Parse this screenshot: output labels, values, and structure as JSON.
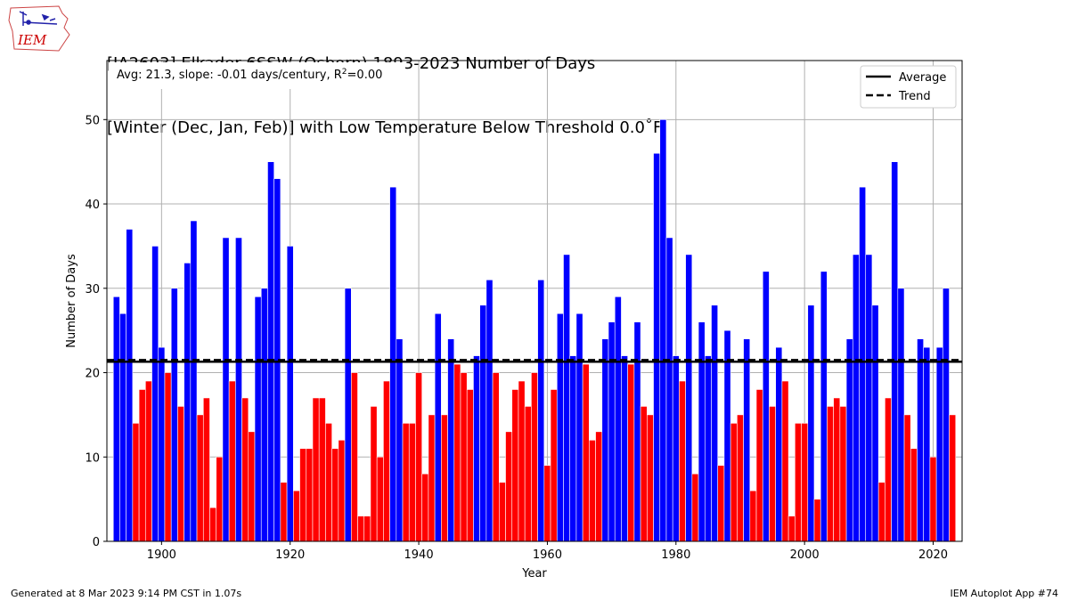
{
  "header": {
    "title_line1": "[IA2603] Elkader 6SSW (Osborn) 1893-2023 Number of Days",
    "title_line2": "[Winter (Dec, Jan, Feb)] with Low Temperature Below Threshold 0.0˚F"
  },
  "footer": {
    "generated": "Generated at 8 Mar 2023 9:14 PM CST in 1.07s",
    "app": "IEM Autoplot App #74"
  },
  "logo": {
    "text": "IEM",
    "color": "#cc0000"
  },
  "chart_data": {
    "type": "bar",
    "xlabel": "Year",
    "ylabel": "Number of Days",
    "xlim": [
      1891.5,
      2024.5
    ],
    "ylim": [
      0,
      57
    ],
    "xticks": [
      1900,
      1920,
      1940,
      1960,
      1980,
      2000,
      2020
    ],
    "yticks": [
      0,
      10,
      20,
      30,
      40,
      50
    ],
    "grid": true,
    "annotation": {
      "prefix": "Avg: 21.3, slope: -0.01 days/century, R",
      "sup": "2",
      "suffix": "=0.00"
    },
    "average": 21.3,
    "trend": [
      21.5,
      21.5
    ],
    "legend": {
      "position": "top-right",
      "entries": [
        {
          "label": "Average",
          "style": "solid"
        },
        {
          "label": "Trend",
          "style": "dashed"
        }
      ]
    },
    "colors": {
      "above": "#0000ff",
      "below": "#ff0000",
      "line": "#000000"
    },
    "x": [
      1893,
      1894,
      1895,
      1896,
      1897,
      1898,
      1899,
      1900,
      1901,
      1902,
      1903,
      1904,
      1905,
      1906,
      1907,
      1908,
      1909,
      1910,
      1911,
      1912,
      1913,
      1914,
      1915,
      1916,
      1917,
      1918,
      1919,
      1920,
      1921,
      1922,
      1923,
      1924,
      1925,
      1926,
      1927,
      1928,
      1929,
      1930,
      1931,
      1932,
      1933,
      1934,
      1935,
      1936,
      1937,
      1938,
      1939,
      1940,
      1941,
      1942,
      1943,
      1944,
      1945,
      1946,
      1947,
      1948,
      1949,
      1950,
      1951,
      1952,
      1953,
      1954,
      1955,
      1956,
      1957,
      1958,
      1959,
      1960,
      1961,
      1962,
      1963,
      1964,
      1965,
      1966,
      1967,
      1968,
      1969,
      1970,
      1971,
      1972,
      1973,
      1974,
      1975,
      1976,
      1977,
      1978,
      1979,
      1980,
      1981,
      1982,
      1983,
      1984,
      1985,
      1986,
      1987,
      1988,
      1989,
      1990,
      1991,
      1992,
      1993,
      1994,
      1995,
      1996,
      1997,
      1998,
      1999,
      2000,
      2001,
      2002,
      2003,
      2004,
      2005,
      2006,
      2007,
      2008,
      2009,
      2010,
      2011,
      2012,
      2013,
      2014,
      2015,
      2016,
      2017,
      2018,
      2019,
      2020,
      2021,
      2022,
      2023
    ],
    "values": [
      29,
      27,
      37,
      14,
      18,
      19,
      35,
      23,
      20,
      30,
      16,
      33,
      38,
      15,
      17,
      4,
      10,
      36,
      19,
      36,
      17,
      13,
      29,
      30,
      45,
      43,
      7,
      35,
      6,
      11,
      11,
      17,
      17,
      14,
      11,
      12,
      30,
      20,
      3,
      3,
      16,
      10,
      19,
      42,
      24,
      14,
      14,
      20,
      8,
      15,
      27,
      15,
      24,
      21,
      20,
      18,
      22,
      28,
      31,
      20,
      7,
      13,
      18,
      19,
      16,
      20,
      31,
      9,
      18,
      27,
      34,
      22,
      27,
      21,
      12,
      13,
      24,
      26,
      29,
      22,
      21,
      26,
      16,
      15,
      46,
      50,
      36,
      22,
      19,
      34,
      8,
      26,
      22,
      28,
      9,
      25,
      14,
      15,
      24,
      6,
      18,
      32,
      16,
      23,
      19,
      3,
      14,
      14,
      28,
      5,
      32,
      16,
      17,
      16,
      24,
      34,
      42,
      34,
      28,
      7,
      17,
      45,
      30,
      15,
      11,
      24,
      23,
      10,
      23,
      30,
      15
    ]
  }
}
